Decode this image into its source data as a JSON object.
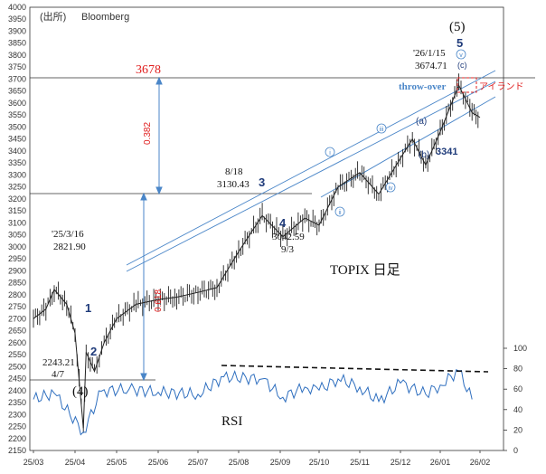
{
  "source": "(出所)",
  "publisher": "Bloomberg",
  "title": "TOPIX 日足",
  "subtitle": "RSI",
  "colors": {
    "price": "#222222",
    "channel": "#4a86c8",
    "rsi": "#2f6fbf",
    "navy": "#1f3b7a",
    "red": "#e02020",
    "grid": "#333333"
  },
  "chart_data": {
    "type": "line",
    "y_left": {
      "ylim": [
        2150,
        4000
      ],
      "step": 50
    },
    "y_right": {
      "ylim": [
        0,
        100
      ],
      "ticks": [
        0,
        20,
        40,
        60,
        80,
        100
      ]
    },
    "x_labels": [
      "25/03",
      "25/04",
      "25/05",
      "25/06",
      "25/07",
      "25/08",
      "25/09",
      "25/10",
      "25/11",
      "25/12",
      "26/01",
      "26/02"
    ],
    "series": [
      {
        "points": [
          [
            "25/03",
            2700
          ],
          [
            "25/03/10",
            2740
          ],
          [
            "25/03/16",
            2821.9
          ],
          [
            "25/03/25",
            2760
          ],
          [
            "25/04/01",
            2640
          ],
          [
            "25/04/07",
            2243.21
          ],
          [
            "25/04/09",
            2560
          ],
          [
            "25/04/15",
            2480
          ],
          [
            "25/04/22",
            2600
          ],
          [
            "25/05/01",
            2700
          ],
          [
            "25/05/15",
            2760
          ],
          [
            "25/06/01",
            2780
          ],
          [
            "25/06/15",
            2790
          ],
          [
            "25/07/01",
            2810
          ],
          [
            "25/07/15",
            2830
          ],
          [
            "25/08/01",
            2980
          ],
          [
            "25/08/18",
            3130.43
          ],
          [
            "25/09/03",
            3042.59
          ],
          [
            "25/09/20",
            3120
          ],
          [
            "25/10/01",
            3090
          ],
          [
            "25/10/15",
            3250
          ],
          [
            "25/11/01",
            3310
          ],
          [
            "25/11/15",
            3220
          ],
          [
            "25/12/01",
            3370
          ],
          [
            "25/12/10",
            3450
          ],
          [
            "25/12/20",
            3341
          ],
          [
            "26/01/01",
            3480
          ],
          [
            "26/01/15",
            3674.71
          ],
          [
            "26/01/25",
            3560
          ],
          [
            "26/02/01",
            3540
          ]
        ]
      },
      {
        "points": [
          [
            "25/03",
            50
          ],
          [
            "25/03/16",
            56
          ],
          [
            "25/04/07",
            18
          ],
          [
            "25/04/20",
            58
          ],
          [
            "25/05/10",
            60
          ],
          [
            "25/06/01",
            57
          ],
          [
            "25/07/01",
            55
          ],
          [
            "25/07/20",
            72
          ],
          [
            "25/08/18",
            70
          ],
          [
            "25/09/03",
            52
          ],
          [
            "25/09/20",
            62
          ],
          [
            "25/10/01",
            59
          ],
          [
            "25/10/15",
            70
          ],
          [
            "25/11/01",
            62
          ],
          [
            "25/11/15",
            48
          ],
          [
            "25/12/01",
            66
          ],
          [
            "25/12/20",
            55
          ],
          [
            "26/01/01",
            64
          ],
          [
            "26/01/15",
            78
          ],
          [
            "26/01/25",
            50
          ]
        ]
      }
    ],
    "annotations": {
      "target": "3678",
      "fib_high": "0.382",
      "fib_low": "0.618",
      "w1": "1",
      "w2": "2",
      "w3": "3",
      "w4": "4",
      "w5": "5",
      "w5_paren": "(5)",
      "w4_paren": "(4)",
      "i": "i",
      "ii": "ii",
      "iii": "iii",
      "iv": "iv",
      "v": "v",
      "a": "(a)",
      "b": "(b)",
      "c": "(c)",
      "low_3341": "3341",
      "peak_date": "'25/3/16",
      "peak_val": "2821.90",
      "low_date": "4/7",
      "low_val": "2243.21",
      "w3_date": "8/18",
      "w3_val": "3130.43",
      "w4_date": "9/3",
      "w4_val": "3042.59",
      "w5_date": "'26/1/15",
      "w5_val": "3674.71",
      "throw_over": "throw-over",
      "island": "アイランド"
    }
  }
}
